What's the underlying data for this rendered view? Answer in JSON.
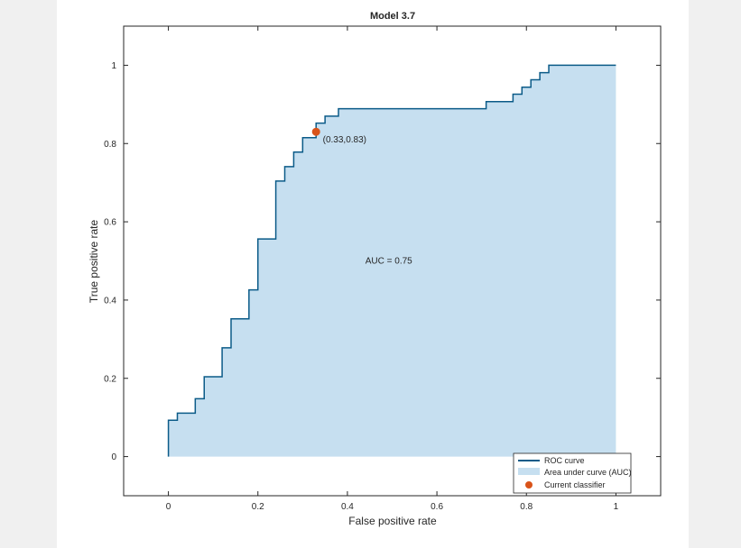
{
  "chart_data": {
    "type": "line",
    "title": "Model 3.7",
    "xlabel": "False positive rate",
    "ylabel": "True positive rate",
    "xlim": [
      -0.1,
      1.1
    ],
    "ylim": [
      -0.1,
      1.1
    ],
    "xticks": [
      0,
      0.2,
      0.4,
      0.6,
      0.8,
      1
    ],
    "xtick_labels": [
      "0",
      "0.2",
      "0.4",
      "0.6",
      "0.8",
      "1"
    ],
    "yticks": [
      0,
      0.2,
      0.4,
      0.6,
      0.8,
      1
    ],
    "ytick_labels": [
      "0",
      "0.2",
      "0.4",
      "0.6",
      "0.8",
      "1"
    ],
    "grid": false,
    "legend_position": "bottom-right",
    "colors": {
      "curve": "#0b5b88",
      "area": "#c6dff0",
      "point": "#d95319"
    },
    "series": [
      {
        "name": "ROC curve",
        "x": [
          0,
          0,
          0.02,
          0.02,
          0.06,
          0.06,
          0.08,
          0.08,
          0.12,
          0.12,
          0.14,
          0.14,
          0.18,
          0.18,
          0.2,
          0.2,
          0.24,
          0.24,
          0.26,
          0.26,
          0.28,
          0.28,
          0.3,
          0.3,
          0.33,
          0.33,
          0.35,
          0.35,
          0.38,
          0.38,
          0.71,
          0.71,
          0.77,
          0.77,
          0.79,
          0.79,
          0.81,
          0.81,
          0.83,
          0.83,
          0.85,
          0.85,
          1
        ],
        "y": [
          0,
          0.093,
          0.093,
          0.111,
          0.111,
          0.148,
          0.148,
          0.204,
          0.204,
          0.278,
          0.278,
          0.352,
          0.352,
          0.426,
          0.426,
          0.556,
          0.556,
          0.704,
          0.704,
          0.741,
          0.741,
          0.778,
          0.778,
          0.815,
          0.815,
          0.852,
          0.852,
          0.87,
          0.87,
          0.889,
          0.889,
          0.907,
          0.907,
          0.926,
          0.926,
          0.944,
          0.944,
          0.963,
          0.963,
          0.981,
          0.981,
          1,
          1
        ]
      },
      {
        "name": "Area under curve (AUC)"
      },
      {
        "name": "Current classifier",
        "x": [
          0.33
        ],
        "y": [
          0.83
        ]
      }
    ],
    "annotations": [
      {
        "text": "(0.33,0.83)",
        "x": 0.345,
        "y": 0.81
      },
      {
        "text": "AUC = 0.75",
        "x": 0.44,
        "y": 0.5
      }
    ]
  }
}
